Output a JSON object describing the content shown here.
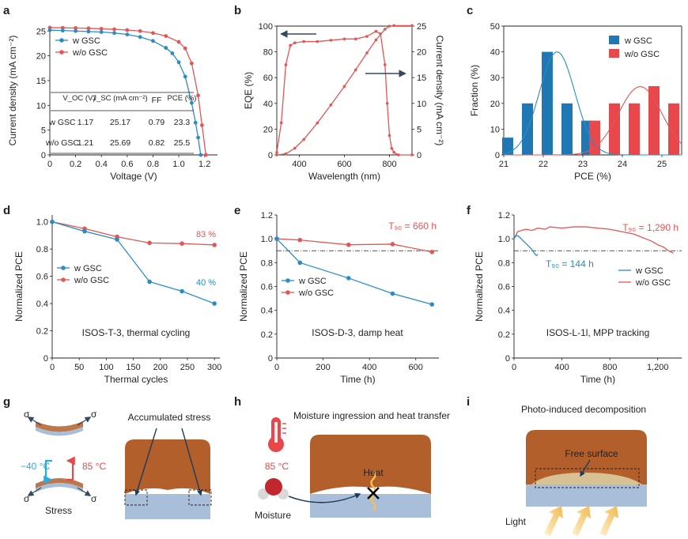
{
  "colors": {
    "blue": "#2b8cc4",
    "red": "#e25656",
    "bar_blue": "#1f78b4",
    "bar_red": "#e8474c",
    "brown": "#b35f2c",
    "substrate": "#a9bed8",
    "thermo": "#e8474c",
    "cold": "#29abe2",
    "light_arrow": "#f5c96a"
  },
  "panel_labels": {
    "a": "a",
    "b": "b",
    "c": "c",
    "d": "d",
    "e": "e",
    "f": "f",
    "g": "g",
    "h": "h",
    "i": "i"
  },
  "charts": [
    {
      "id": "a",
      "type": "line",
      "xlabel": "Voltage (V)",
      "ylabel": "Current density (mA cm⁻²)",
      "xlim": [
        0,
        1.3
      ],
      "ylim": [
        0,
        26
      ],
      "xticks": [
        "0",
        "0.2",
        "0.4",
        "0.6",
        "0.8",
        "1.0",
        "1.2"
      ],
      "yticks": [
        "0",
        "5",
        "10",
        "15",
        "20",
        "25"
      ],
      "legend": [
        "w GSC",
        "w/o GSC"
      ],
      "series": [
        {
          "name": "w GSC",
          "color": "blue",
          "x": [
            0,
            0.1,
            0.2,
            0.3,
            0.4,
            0.5,
            0.6,
            0.7,
            0.8,
            0.9,
            0.95,
            1.0,
            1.05,
            1.1,
            1.13,
            1.15,
            1.17
          ],
          "y": [
            25.17,
            25.1,
            25.0,
            24.9,
            24.8,
            24.6,
            24.3,
            23.8,
            23.0,
            21.6,
            20.5,
            18.7,
            15.8,
            10.5,
            6.5,
            3.5,
            0
          ]
        },
        {
          "name": "w/o GSC",
          "color": "red",
          "x": [
            0,
            0.1,
            0.2,
            0.3,
            0.4,
            0.5,
            0.6,
            0.7,
            0.8,
            0.9,
            1.0,
            1.05,
            1.1,
            1.15,
            1.18,
            1.21
          ],
          "y": [
            25.69,
            25.65,
            25.6,
            25.55,
            25.45,
            25.35,
            25.2,
            25.0,
            24.6,
            24.0,
            22.8,
            21.5,
            18.5,
            12.0,
            6.0,
            0
          ]
        }
      ]
    },
    {
      "id": "b",
      "type": "line",
      "xlabel": "Wavelength (nm)",
      "ylabel": "EQE (%)",
      "y2label": "Current density (mA cm⁻²)",
      "xlim": [
        300,
        900
      ],
      "ylim": [
        0,
        100
      ],
      "y2lim": [
        0,
        25
      ],
      "xticks": [
        "400",
        "600",
        "800"
      ],
      "yticks": [
        "0",
        "20",
        "40",
        "60",
        "80",
        "100"
      ],
      "y2ticks": [
        "0",
        "5",
        "10",
        "15",
        "20",
        "25"
      ],
      "series": [
        {
          "name": "EQE",
          "axis": "left",
          "x": [
            300,
            320,
            340,
            360,
            380,
            420,
            480,
            540,
            600,
            650,
            700,
            740,
            760,
            780,
            790,
            800,
            810,
            820,
            840,
            900
          ],
          "y": [
            2,
            25,
            70,
            85,
            87,
            88,
            88,
            89,
            90,
            90,
            92,
            96,
            94,
            70,
            40,
            15,
            5,
            2,
            0,
            0
          ]
        },
        {
          "name": "Integrated Jsc",
          "axis": "right",
          "x": [
            300,
            340,
            380,
            420,
            480,
            540,
            600,
            650,
            700,
            740,
            780,
            800,
            820,
            900
          ],
          "y": [
            0,
            0.2,
            1.3,
            3.0,
            6.2,
            9.7,
            13.3,
            16.5,
            19.8,
            22.3,
            24.4,
            25.0,
            25.1,
            25.1
          ]
        }
      ]
    },
    {
      "id": "c",
      "type": "bar",
      "xlabel": "PCE (%)",
      "ylabel": "Fraction (%)",
      "xlim": [
        21,
        25.5
      ],
      "ylim": [
        0,
        50
      ],
      "xticks": [
        "21",
        "22",
        "23",
        "24",
        "25"
      ],
      "yticks": [
        "0",
        "10",
        "20",
        "30",
        "40",
        "50"
      ],
      "legend": [
        "w GSC",
        "w/o GSC"
      ],
      "series": [
        {
          "name": "w GSC",
          "color": "bar_blue",
          "x": [
            21.1,
            21.6,
            22.1,
            22.6,
            23.1
          ],
          "values": [
            6.7,
            20,
            40,
            20,
            13.3
          ]
        },
        {
          "name": "w/o GSC",
          "color": "bar_red",
          "x": [
            23.3,
            23.8,
            24.3,
            24.8,
            25.3
          ],
          "values": [
            13.3,
            20,
            20,
            26.7,
            20
          ]
        }
      ],
      "fits": [
        {
          "color": "blue",
          "mean": 22.35,
          "sd": 0.45,
          "peak": 40
        },
        {
          "color": "red",
          "mean": 24.45,
          "sd": 0.55,
          "peak": 26.5
        }
      ]
    },
    {
      "id": "d",
      "type": "line",
      "xlabel": "Thermal cycles",
      "ylabel": "Normalized PCE",
      "xlim": [
        0,
        310
      ],
      "ylim": [
        0,
        1.05
      ],
      "xticks": [
        "0",
        "50",
        "100",
        "150",
        "200",
        "250",
        "300"
      ],
      "yticks": [
        "0",
        "0.2",
        "0.4",
        "0.6",
        "0.8",
        "1.0"
      ],
      "legend": [
        "w GSC",
        "w/o GSC"
      ],
      "note": "ISOS-T-3, thermal cycling",
      "annotations": [
        {
          "text": "83 %",
          "color": "red"
        },
        {
          "text": "40 %",
          "color": "blue"
        }
      ],
      "series": [
        {
          "name": "w GSC",
          "color": "blue",
          "x": [
            0,
            60,
            120,
            180,
            240,
            300
          ],
          "y": [
            1.0,
            0.93,
            0.87,
            0.56,
            0.49,
            0.4
          ]
        },
        {
          "name": "w/o GSC",
          "color": "red",
          "x": [
            0,
            60,
            120,
            180,
            240,
            300
          ],
          "y": [
            1.0,
            0.95,
            0.89,
            0.845,
            0.84,
            0.83
          ]
        }
      ]
    },
    {
      "id": "e",
      "type": "line",
      "xlabel": "Time (h)",
      "ylabel": "Normalized PCE",
      "xlim": [
        0,
        700
      ],
      "ylim": [
        0,
        1.2
      ],
      "xticks": [
        "0",
        "200",
        "400",
        "600"
      ],
      "yticks": [
        "0",
        "0.2",
        "0.4",
        "0.6",
        "0.8",
        "1.0",
        "1.2"
      ],
      "legend": [
        "w GSC",
        "w/o GSC"
      ],
      "note": "ISOS-D-3, damp heat",
      "t90_text": "T₉₀ = 660 h",
      "t90_level": 0.9,
      "series": [
        {
          "name": "w GSC",
          "color": "blue",
          "x": [
            0,
            100,
            310,
            500,
            670
          ],
          "y": [
            1.0,
            0.8,
            0.67,
            0.54,
            0.45
          ]
        },
        {
          "name": "w/o GSC",
          "color": "red",
          "x": [
            0,
            100,
            310,
            500,
            670
          ],
          "y": [
            1.0,
            0.99,
            0.95,
            0.955,
            0.89
          ]
        }
      ]
    },
    {
      "id": "f",
      "type": "line",
      "xlabel": "Time (h)",
      "ylabel": "Normalized PCE",
      "xlim": [
        0,
        1400
      ],
      "ylim": [
        0,
        1.2
      ],
      "xticks": [
        "0",
        "400",
        "800",
        "1,200"
      ],
      "yticks": [
        "0",
        "0.2",
        "0.4",
        "0.6",
        "0.8",
        "1.0",
        "1.2"
      ],
      "legend": [
        "w GSC",
        "w/o GSC"
      ],
      "note": "ISOS-L-1l, MPP tracking",
      "t90_red": "T₉₀ = 1,290 h",
      "t90_blue": "T₉₀ = 144 h",
      "t90_level": 0.9,
      "series": [
        {
          "name": "w GSC",
          "color": "blue",
          "x": [
            0,
            20,
            40,
            70,
            100,
            130,
            150,
            170,
            185,
            200
          ],
          "y": [
            1.0,
            1.03,
            1.02,
            0.99,
            0.96,
            0.93,
            0.91,
            0.88,
            0.86,
            0.87
          ]
        },
        {
          "name": "w/o GSC",
          "color": "red",
          "x": [
            0,
            30,
            60,
            100,
            150,
            200,
            260,
            300,
            400,
            500,
            600,
            700,
            800,
            900,
            1000,
            1050,
            1100,
            1150,
            1200,
            1250,
            1290,
            1330
          ],
          "y": [
            1.0,
            1.06,
            1.07,
            1.08,
            1.07,
            1.09,
            1.08,
            1.1,
            1.09,
            1.1,
            1.1,
            1.09,
            1.08,
            1.06,
            1.04,
            1.02,
            1.0,
            0.98,
            0.95,
            0.93,
            0.9,
            0.88
          ]
        }
      ]
    }
  ],
  "table_a": {
    "headers": [
      "V_OC (V)",
      "J_SC (mA cm⁻²)",
      "FF",
      "PCE (%)"
    ],
    "rows": [
      {
        "label": "w GSC",
        "voc": "1.17",
        "jsc": "25.17",
        "ff": "0.79",
        "pce": "23.3"
      },
      {
        "label": "w/o GSC",
        "voc": "1.21",
        "jsc": "25.69",
        "ff": "0.82",
        "pce": "25.5"
      }
    ]
  },
  "diagram_g": {
    "title": "Accumulated stress",
    "stress": "Stress",
    "sigma": "σ",
    "hot": "85 °C",
    "cold": "−40 °C"
  },
  "diagram_h": {
    "title": "Moisture ingression and heat transfer",
    "temp": "85 °C",
    "heat": "Heat",
    "moisture": "Moisture"
  },
  "diagram_i": {
    "title": "Photo-induced decomposition",
    "free_surface": "Free surface",
    "light": "Light"
  }
}
